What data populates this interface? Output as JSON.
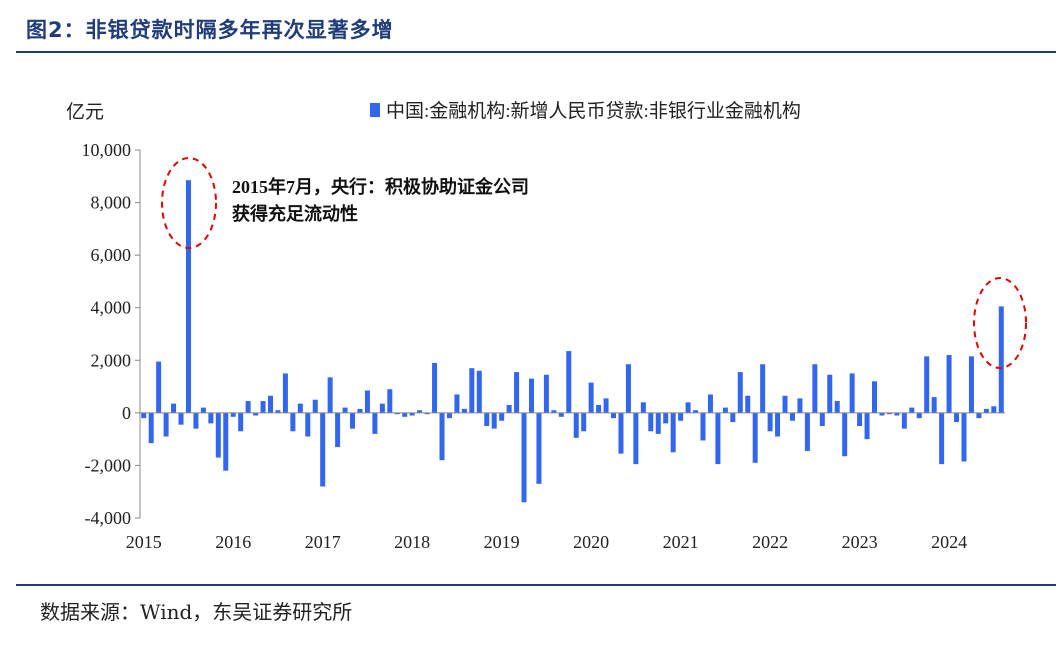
{
  "figure": {
    "title": "图2：非银贷款时隔多年再次显著多增",
    "source": "数据来源：Wind，东吴证券研究所"
  },
  "chart_data": {
    "type": "bar",
    "ylabel": "亿元",
    "ylim": [
      -4000,
      10000
    ],
    "yticks": [
      -4000,
      -2000,
      0,
      2000,
      4000,
      6000,
      8000,
      10000
    ],
    "ytick_labels": [
      "-4,000",
      "-2,000",
      "0",
      "2,000",
      "4,000",
      "6,000",
      "8,000",
      "10,000"
    ],
    "xtick_labels": [
      "2015",
      "2016",
      "2017",
      "2018",
      "2019",
      "2020",
      "2021",
      "2022",
      "2023",
      "2024"
    ],
    "legend_position": "top",
    "bar_color": "#3366ee",
    "annotation_color": "#e00000",
    "annotation": [
      "2015年7月，央行：积极协助证金公司",
      "获得充足流动性"
    ],
    "series": [
      {
        "name": "中国:金融机构:新增人民币贷款:非银行业金融机构",
        "start": "2015-01",
        "values": [
          -200,
          -1150,
          1950,
          -900,
          350,
          -450,
          8850,
          -600,
          200,
          -400,
          -1700,
          -2200,
          -150,
          -700,
          450,
          -100,
          450,
          650,
          100,
          1500,
          -700,
          350,
          -900,
          500,
          -2800,
          1350,
          -1300,
          200,
          -600,
          150,
          850,
          -800,
          350,
          900,
          -50,
          -150,
          -100,
          100,
          -50,
          1900,
          -1800,
          -200,
          700,
          150,
          1700,
          1600,
          -500,
          -600,
          -300,
          300,
          1550,
          -3400,
          1300,
          -2700,
          1450,
          100,
          -150,
          2350,
          -950,
          -700,
          1150,
          300,
          550,
          -200,
          -1550,
          1850,
          -1950,
          400,
          -700,
          -800,
          -400,
          -1500,
          -300,
          400,
          100,
          -1050,
          700,
          -1950,
          200,
          -350,
          1550,
          650,
          -1900,
          1850,
          -700,
          -900,
          650,
          -300,
          550,
          -1450,
          1850,
          -500,
          1450,
          450,
          -1650,
          1500,
          -500,
          -1000,
          1200,
          -100,
          -50,
          -100,
          -600,
          200,
          -200,
          2150,
          600,
          -1950,
          2200,
          -350,
          -1850,
          2150,
          -200,
          150,
          250,
          4050
        ]
      }
    ]
  }
}
